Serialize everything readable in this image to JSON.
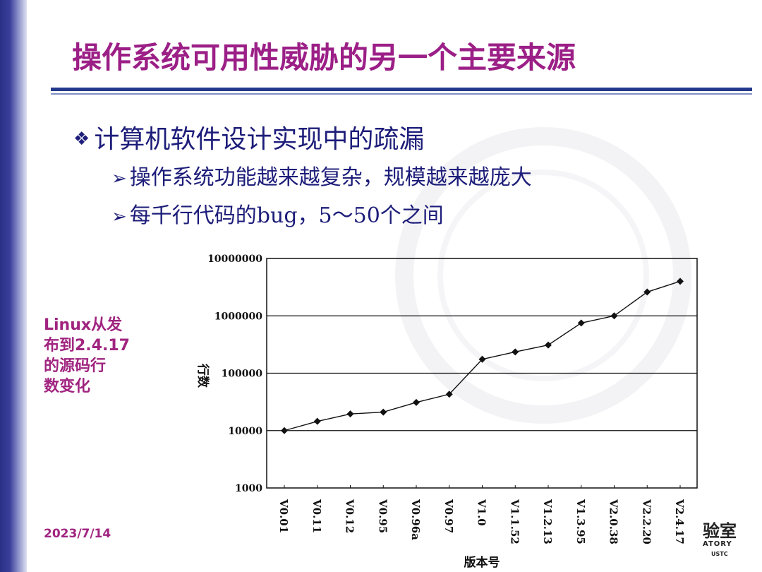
{
  "slide": {
    "title": "操作系统可用性威胁的另一个主要来源",
    "bullet1": {
      "marker": "❖",
      "text": "计算机软件设计实现中的疏漏"
    },
    "bullet2": {
      "marker": "➢",
      "text": "操作系统功能越来越复杂，规模越来越庞大"
    },
    "bullet3": {
      "marker": "➢",
      "text_prefix": "每千行代码的",
      "text_serif": "bug，5～50",
      "text_suffix": "个之间"
    },
    "side_label_html_lines": [
      "Linux从发",
      "布到2.4.17",
      "的源码行",
      "数变化"
    ],
    "date": "2023/7/14",
    "logo_text": "验室",
    "logo_sub1": "ATORY",
    "logo_sub2": "USTC"
  },
  "colors": {
    "title": "#9b1f86",
    "text": "#1d1d7a",
    "accent": "#a0247f",
    "rule": "#233a8c"
  },
  "chart_data": {
    "type": "line",
    "xlabel": "版本号",
    "ylabel": "行数",
    "yscale": "log",
    "ylim": [
      1000,
      10000000
    ],
    "y_tick_labels": [
      "10000000",
      "1000000",
      "100000",
      "10000",
      "1000"
    ],
    "y_tick_values": [
      10000000,
      1000000,
      100000,
      10000,
      1000
    ],
    "categories": [
      "V0.01",
      "V0.11",
      "V0.12",
      "V0.95",
      "V0.96a",
      "V0.97",
      "V1.0",
      "V1.1.52",
      "V1.2.13",
      "V1.3.95",
      "V2.0.38",
      "V2.2.20",
      "V2.4.17"
    ],
    "values": [
      10000,
      14500,
      19500,
      21000,
      31000,
      43000,
      175000,
      235000,
      310000,
      750000,
      1000000,
      2600000,
      4000000
    ],
    "grid": "horizontal"
  }
}
